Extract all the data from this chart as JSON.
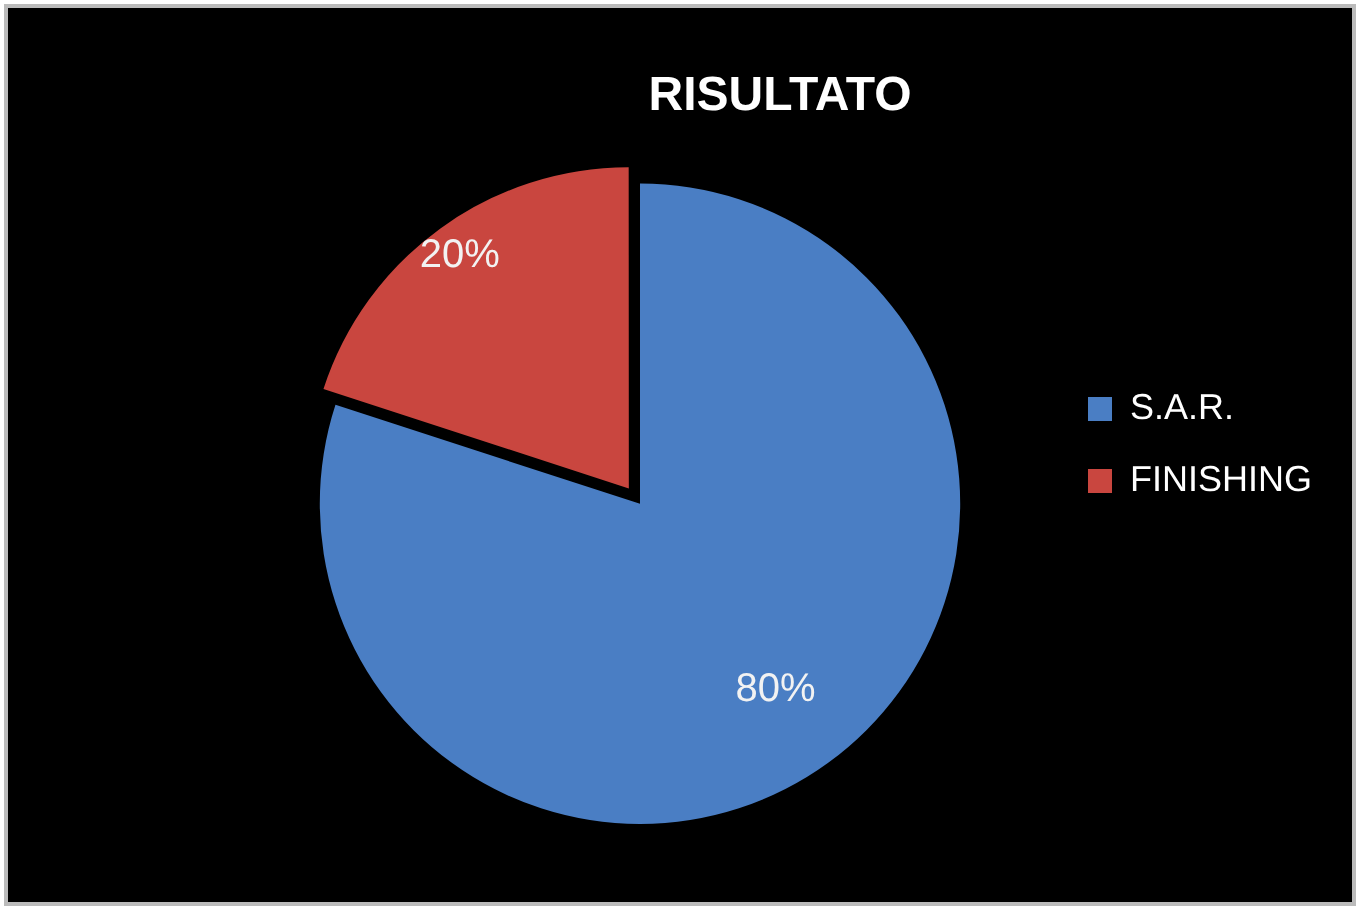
{
  "chart_data": {
    "type": "pie",
    "title": "RISULTATO",
    "categories": [
      "S.A.R.",
      "FINISHING"
    ],
    "values": [
      80,
      20
    ],
    "colors": [
      "#4a7ec4",
      "#c9463f"
    ],
    "value_labels": [
      "80%",
      "20%"
    ],
    "legend": "right"
  }
}
